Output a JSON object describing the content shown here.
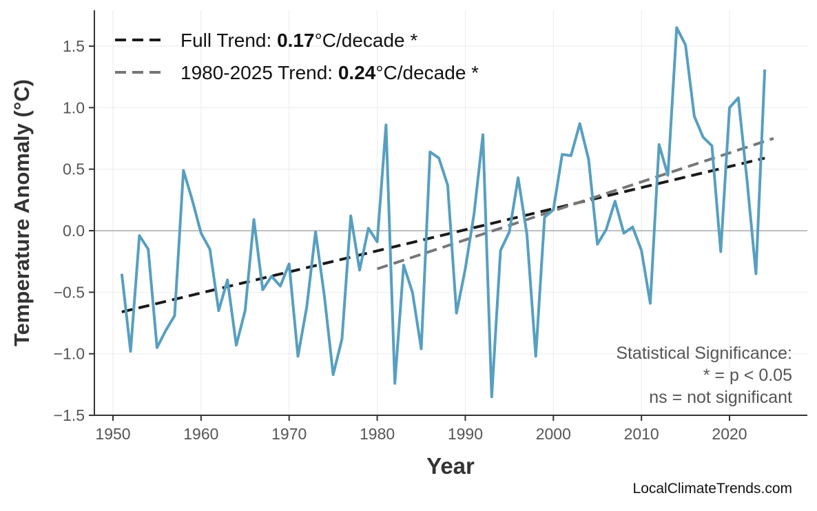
{
  "chart_data": {
    "type": "line",
    "title": "",
    "xlabel": "Year",
    "ylabel": "Temperature Anomaly (°C)",
    "xlim": [
      1947.5,
      2029
    ],
    "ylim": [
      -1.5,
      1.75
    ],
    "xticks": [
      1950,
      1960,
      1970,
      1980,
      1990,
      2000,
      2010,
      2020
    ],
    "yticks": [
      -1.5,
      -1.0,
      -0.5,
      0.0,
      0.5,
      1.0,
      1.5
    ],
    "ytick_labels": [
      "−1.5",
      "−1.0",
      "−0.5",
      "0.0",
      "0.5",
      "1.0",
      "1.5"
    ],
    "grid": true,
    "zero_line": true,
    "series": [
      {
        "color": "#579fc0",
        "x": [
          1951,
          1952,
          1953,
          1954,
          1955,
          1956,
          1957,
          1958,
          1959,
          1960,
          1961,
          1962,
          1963,
          1964,
          1965,
          1966,
          1967,
          1968,
          1969,
          1970,
          1971,
          1972,
          1973,
          1974,
          1975,
          1976,
          1977,
          1978,
          1979,
          1980,
          1981,
          1982,
          1983,
          1984,
          1985,
          1986,
          1987,
          1988,
          1989,
          1990,
          1991,
          1992,
          1993,
          1994,
          1995,
          1996,
          1997,
          1998,
          1999,
          2000,
          2001,
          2002,
          2003,
          2004,
          2005,
          2006,
          2007,
          2008,
          2009,
          2010,
          2011,
          2012,
          2013,
          2014,
          2015,
          2016,
          2017,
          2018,
          2019,
          2020,
          2021,
          2022,
          2023,
          2024
        ],
        "y": [
          -0.35,
          -0.98,
          -0.04,
          -0.15,
          -0.95,
          -0.81,
          -0.69,
          0.49,
          0.25,
          -0.02,
          -0.15,
          -0.65,
          -0.4,
          -0.93,
          -0.65,
          0.09,
          -0.48,
          -0.37,
          -0.45,
          -0.27,
          -1.02,
          -0.62,
          -0.01,
          -0.53,
          -1.17,
          -0.88,
          0.12,
          -0.32,
          0.02,
          -0.09,
          0.86,
          -1.24,
          -0.28,
          -0.5,
          -0.96,
          0.64,
          0.59,
          0.37,
          -0.67,
          -0.31,
          0.14,
          0.78,
          -1.35,
          -0.16,
          -0.01,
          0.43,
          -0.03,
          -1.02,
          0.11,
          0.17,
          0.62,
          0.61,
          0.87,
          0.58,
          -0.11,
          0.01,
          0.24,
          -0.02,
          0.03,
          -0.16,
          -0.59,
          0.7,
          0.45,
          1.65,
          1.51,
          0.93,
          0.76,
          0.69,
          -0.17,
          1.0,
          1.08,
          0.4,
          -0.35,
          1.31
        ]
      }
    ],
    "trends": [
      {
        "label_prefix": "Full Trend: ",
        "value": "0.17",
        "label_suffix": "°C/decade *",
        "x": [
          1951,
          2024
        ],
        "y": [
          -0.66,
          0.59
        ],
        "color": "#1a1a1a"
      },
      {
        "label_prefix": "1980-2025 Trend: ",
        "value": "0.24",
        "label_suffix": "°C/decade *",
        "x": [
          1980,
          2025
        ],
        "y": [
          -0.31,
          0.75
        ],
        "color": "#777777"
      }
    ],
    "legend_position": "top-left",
    "annotation": [
      "Statistical Significance:",
      "* = p < 0.05",
      "ns = not significant"
    ]
  },
  "watermark": "LocalClimateTrends.com"
}
